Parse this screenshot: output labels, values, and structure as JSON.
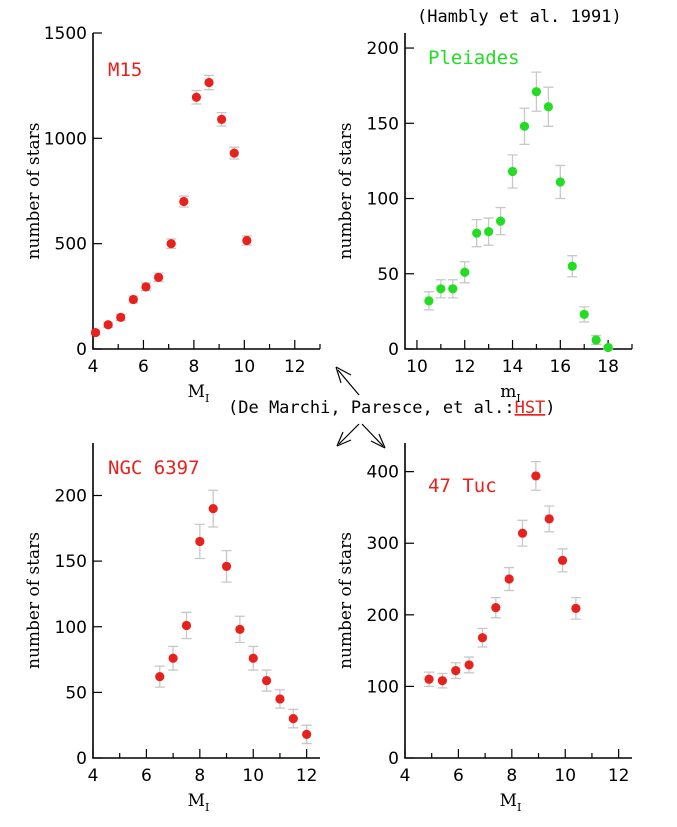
{
  "colors": {
    "red": "#e8211d",
    "green": "#22dd22",
    "error_bar": "#c8c8c8"
  },
  "annotations": {
    "source_top": "(Hambly et al. 1991)",
    "source_bottom_prefix": "(De Marchi, Paresce, et al.:",
    "source_bottom_highlight": "HST",
    "source_bottom_suffix": ")"
  },
  "chart_data": [
    {
      "id": "m15",
      "type": "scatter",
      "title": "M15",
      "color": "#e8211d",
      "xlabel": "M",
      "xlabel_sub": "I",
      "ylabel": "number of stars",
      "xlim": [
        4,
        13
      ],
      "ylim": [
        0,
        1500
      ],
      "xticks": [
        4,
        6,
        8,
        10,
        12
      ],
      "yticks": [
        0,
        500,
        1000,
        1500
      ],
      "ytick_labels": [
        "0",
        "500",
        "1000",
        "1500"
      ],
      "x": [
        4.1,
        4.6,
        5.1,
        5.6,
        6.1,
        6.6,
        7.1,
        7.6,
        8.1,
        8.6,
        9.1,
        9.6,
        10.1
      ],
      "y": [
        78,
        115,
        150,
        235,
        295,
        340,
        500,
        700,
        1195,
        1265,
        1090,
        930,
        515
      ],
      "err": [
        10,
        12,
        14,
        16,
        18,
        20,
        22,
        26,
        32,
        34,
        32,
        28,
        22
      ]
    },
    {
      "id": "pleiades",
      "type": "scatter",
      "title": "Pleiades",
      "color": "#22dd22",
      "xlabel": "m",
      "xlabel_sub": "I",
      "ylabel": "number of stars",
      "xlim": [
        9.5,
        19
      ],
      "ylim": [
        0,
        210
      ],
      "xticks": [
        10,
        12,
        14,
        16,
        18
      ],
      "yticks": [
        0,
        50,
        100,
        150,
        200
      ],
      "ytick_labels": [
        "0",
        "50",
        "100",
        "150",
        "200"
      ],
      "x": [
        10.5,
        11.0,
        11.5,
        12.0,
        12.5,
        13.0,
        13.5,
        14.0,
        14.5,
        15.0,
        15.5,
        16.0,
        16.5,
        17.0,
        17.5,
        18.0
      ],
      "y": [
        32,
        40,
        40,
        51,
        77,
        78,
        85,
        118,
        148,
        171,
        161,
        111,
        55,
        23,
        6,
        1
      ],
      "err": [
        6,
        6,
        6,
        7,
        9,
        9,
        9,
        11,
        12,
        13,
        13,
        11,
        7,
        5,
        3,
        1
      ]
    },
    {
      "id": "ngc6397",
      "type": "scatter",
      "title": "NGC 6397",
      "color": "#e8211d",
      "xlabel": "M",
      "xlabel_sub": "I",
      "ylabel": "number of stars",
      "xlim": [
        4,
        12.5
      ],
      "ylim": [
        0,
        240
      ],
      "xticks": [
        4,
        6,
        8,
        10,
        12
      ],
      "yticks": [
        0,
        50,
        100,
        150,
        200
      ],
      "ytick_labels": [
        "0",
        "50",
        "100",
        "150",
        "200"
      ],
      "x": [
        6.5,
        7.0,
        7.5,
        8.0,
        8.5,
        9.0,
        9.5,
        10.0,
        10.5,
        11.0,
        11.5,
        12.0
      ],
      "y": [
        62,
        76,
        101,
        165,
        190,
        146,
        98,
        76,
        59,
        45,
        30,
        18
      ],
      "err": [
        8,
        9,
        10,
        13,
        14,
        12,
        10,
        9,
        8,
        7,
        7,
        7
      ]
    },
    {
      "id": "47tuc",
      "type": "scatter",
      "title": "47 Tuc",
      "color": "#e8211d",
      "xlabel": "M",
      "xlabel_sub": "I",
      "ylabel": "number of stars",
      "xlim": [
        4,
        12.5
      ],
      "ylim": [
        0,
        440
      ],
      "xticks": [
        4,
        6,
        8,
        10,
        12
      ],
      "yticks": [
        0,
        100,
        200,
        300,
        400
      ],
      "ytick_labels": [
        "0",
        "100",
        "200",
        "300",
        "400"
      ],
      "x": [
        4.9,
        5.4,
        5.9,
        6.4,
        6.9,
        7.4,
        7.9,
        8.4,
        8.9,
        9.4,
        9.9,
        10.4
      ],
      "y": [
        110,
        108,
        122,
        130,
        168,
        210,
        250,
        314,
        394,
        334,
        276,
        209
      ],
      "err": [
        10,
        10,
        11,
        11,
        13,
        14,
        16,
        18,
        20,
        18,
        16,
        15
      ]
    }
  ]
}
